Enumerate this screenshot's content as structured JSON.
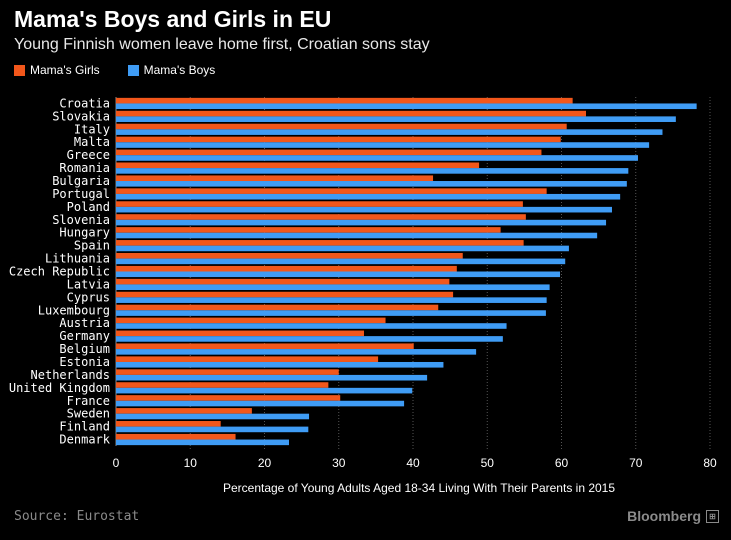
{
  "header": {
    "title": "Mama's Boys and Girls in EU",
    "subtitle": "Young Finnish women leave home first, Croatian sons stay"
  },
  "footer": {
    "source": "Source: Eurostat",
    "brand": "Bloomberg"
  },
  "colors": {
    "girls": "#f2571b",
    "boys": "#3f9cf5",
    "background": "#000000",
    "grid": "#555555"
  },
  "chart_data": {
    "type": "bar",
    "orientation": "horizontal",
    "xlabel": "Percentage of Young Adults Aged 18-34 Living With Their Parents in 2015",
    "xlim": [
      0,
      80
    ],
    "xticks": [
      0,
      10,
      20,
      30,
      40,
      50,
      60,
      70,
      80
    ],
    "grid": "vertical dotted",
    "legend_position": "top-left",
    "categories": [
      "Croatia",
      "Slovakia",
      "Italy",
      "Malta",
      "Greece",
      "Romania",
      "Bulgaria",
      "Portugal",
      "Poland",
      "Slovenia",
      "Hungary",
      "Spain",
      "Lithuania",
      "Czech Republic",
      "Latvia",
      "Cyprus",
      "Luxembourg",
      "Austria",
      "Germany",
      "Belgium",
      "Estonia",
      "Netherlands",
      "United Kingdom",
      "France",
      "Sweden",
      "Finland",
      "Denmark"
    ],
    "series": [
      {
        "name": "Mama's Girls",
        "values": [
          61.5,
          63.3,
          60.7,
          59.9,
          57.3,
          48.9,
          42.7,
          58.0,
          54.8,
          55.2,
          51.8,
          54.9,
          46.7,
          45.9,
          44.9,
          45.4,
          43.4,
          36.3,
          33.4,
          40.1,
          35.3,
          30.0,
          28.6,
          30.2,
          18.3,
          14.1,
          16.1
        ]
      },
      {
        "name": "Mama's Boys",
        "values": [
          78.2,
          75.4,
          73.6,
          71.8,
          70.3,
          69.0,
          68.8,
          67.9,
          66.8,
          66.0,
          64.8,
          61.0,
          60.5,
          59.8,
          58.4,
          58.0,
          57.9,
          52.6,
          52.1,
          48.5,
          44.1,
          41.9,
          39.9,
          38.8,
          26.0,
          25.9,
          23.3
        ]
      }
    ]
  }
}
